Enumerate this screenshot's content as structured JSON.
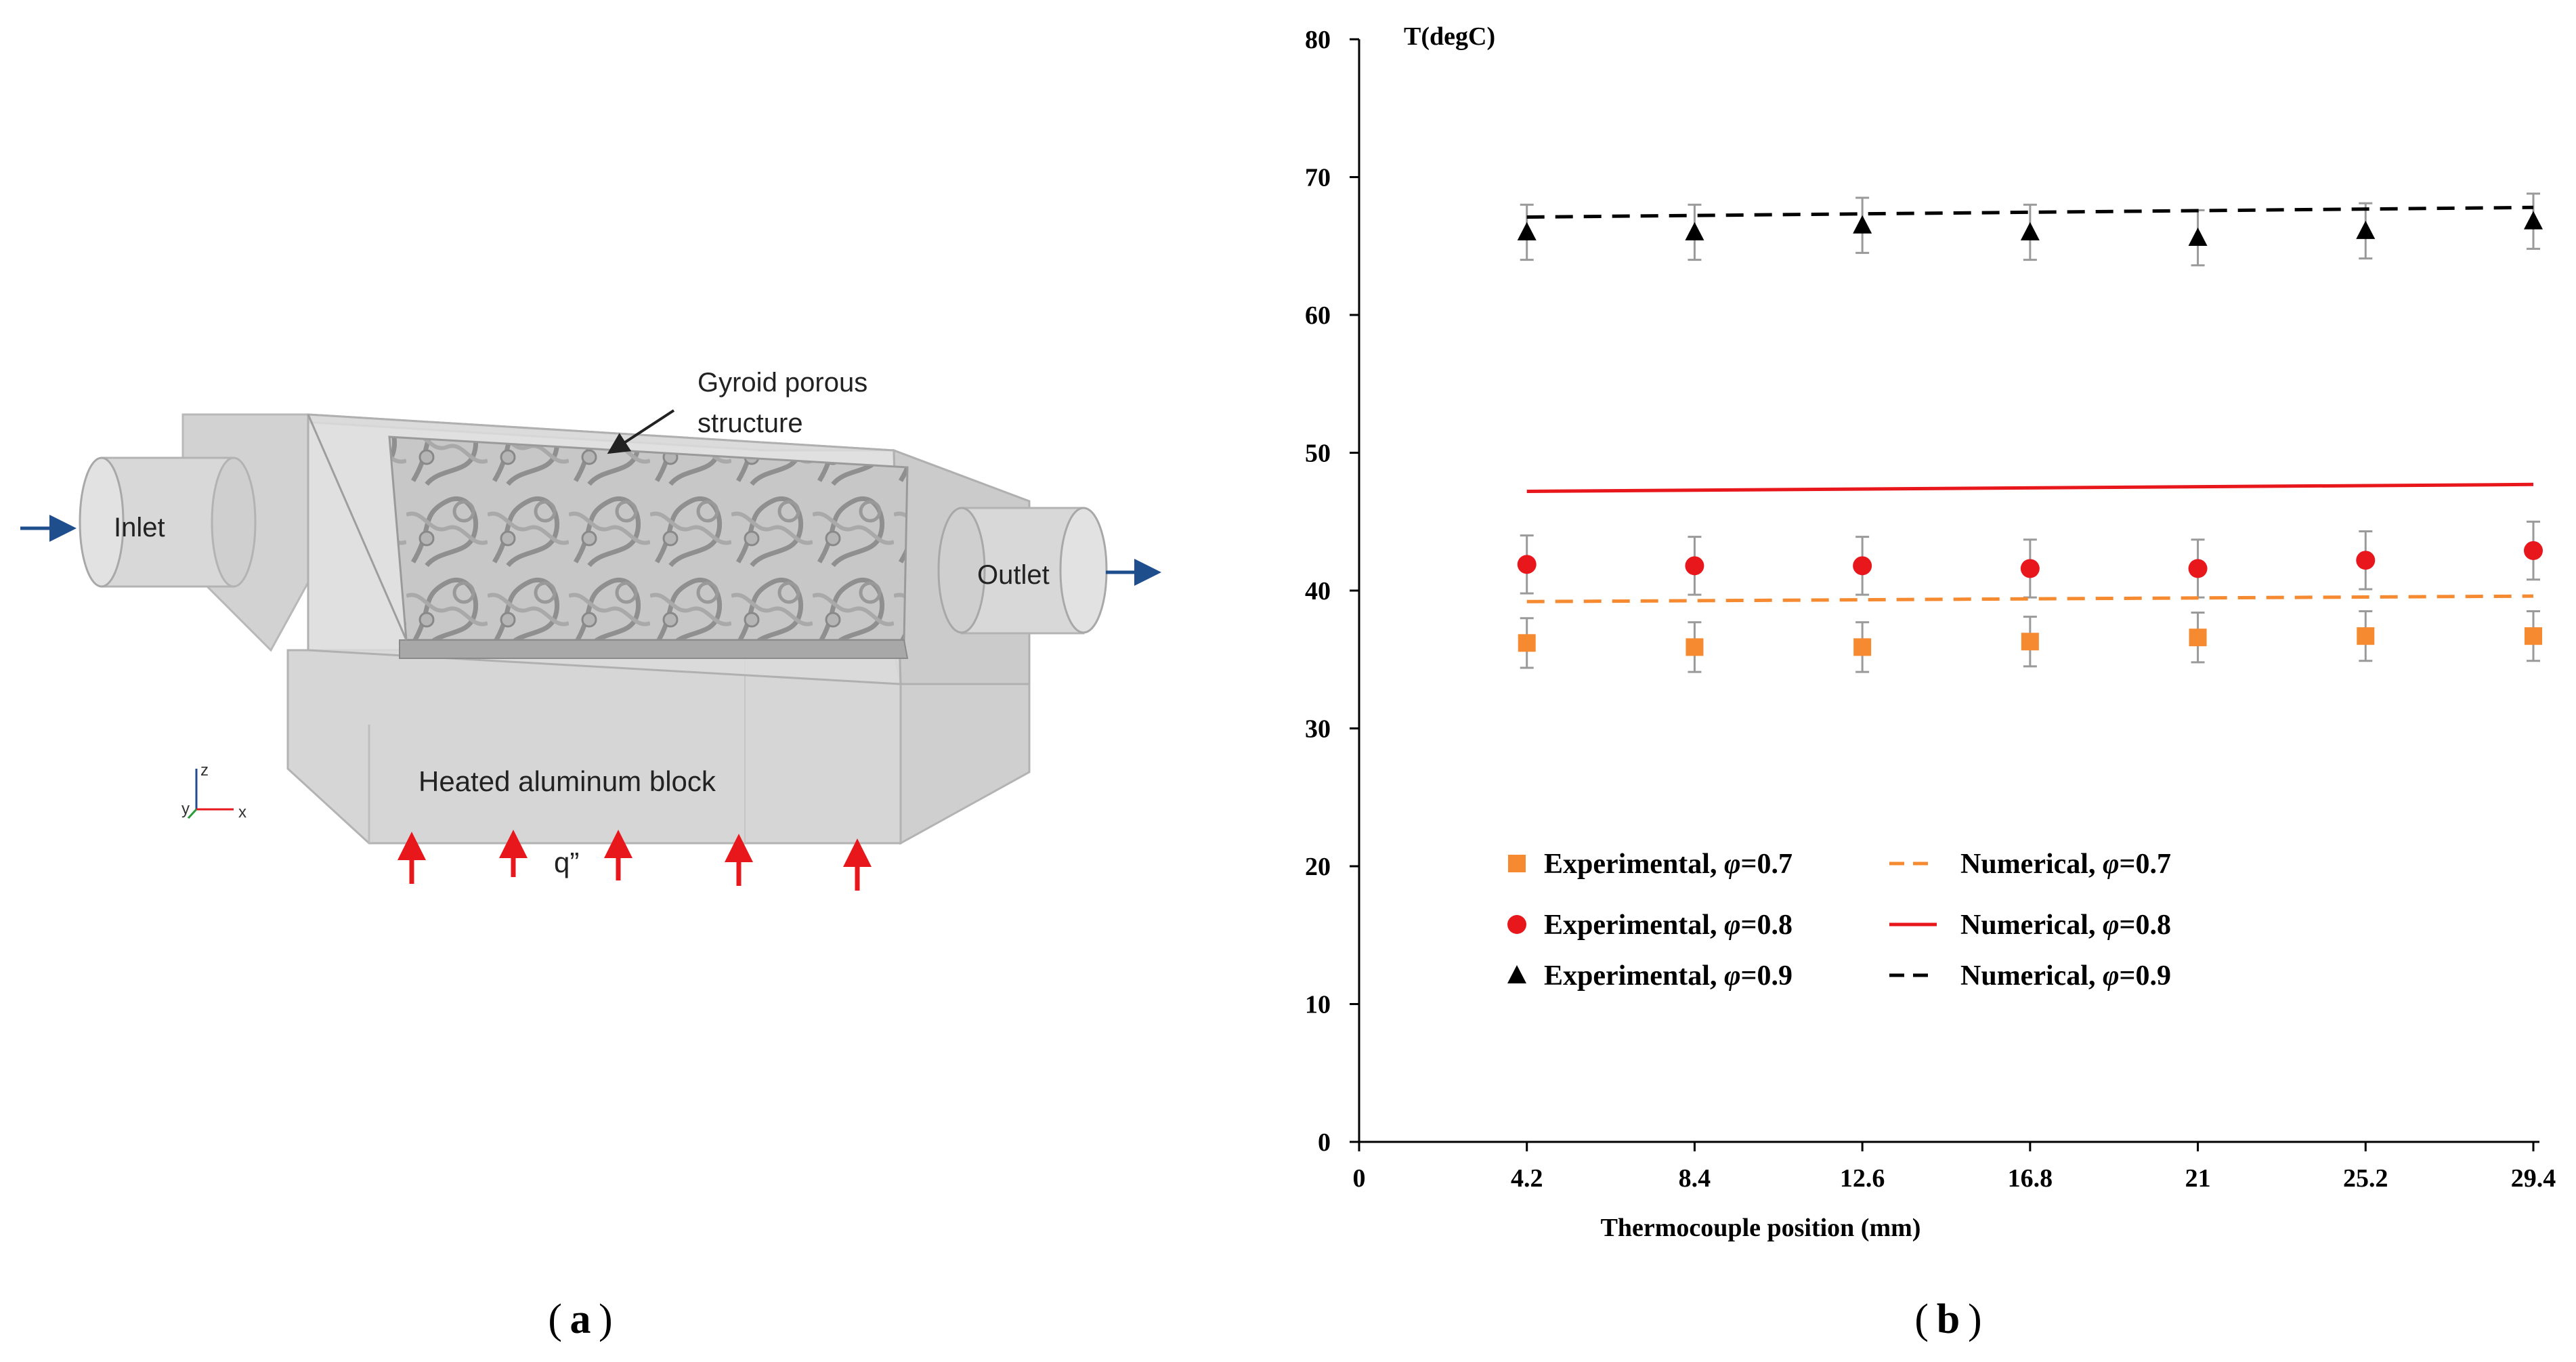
{
  "panel_a": {
    "caption_letter": "a",
    "labels": {
      "gyroid_line1": "Gyroid porous",
      "gyroid_line2": "structure",
      "inlet": "Inlet",
      "outlet": "Outlet",
      "block": "Heated aluminum block",
      "heat_flux": "q”"
    },
    "axes": {
      "z": "z",
      "y": "y",
      "x": "x"
    },
    "colors": {
      "arrow_blue": "#1f4e8c",
      "heat_red": "#e8171c",
      "housing": "#d4d4d4"
    }
  },
  "panel_b": {
    "caption_letter": "b"
  },
  "chart_data": {
    "type": "scatter",
    "ylabel": "T(degC)",
    "xlabel": "Thermocouple position (mm)",
    "x_ticks": [
      "0",
      "4.2",
      "8.4",
      "12.6",
      "16.8",
      "21",
      "25.2",
      "29.4"
    ],
    "y_ticks": [
      "0",
      "10",
      "20",
      "30",
      "40",
      "50",
      "60",
      "70",
      "80"
    ],
    "xlim": [
      0,
      29.4
    ],
    "ylim": [
      0,
      80
    ],
    "x": [
      4.2,
      8.4,
      12.6,
      16.8,
      21,
      25.2,
      29.4
    ],
    "experimental": [
      {
        "name": "Experimental, φ=0.7",
        "marker": "square",
        "color": "#f58a30",
        "values": [
          36.2,
          35.9,
          35.9,
          36.3,
          36.6,
          36.7,
          36.7
        ],
        "error": 1.8
      },
      {
        "name": "Experimental, φ=0.8",
        "marker": "circle",
        "color": "#e8171c",
        "values": [
          41.9,
          41.8,
          41.8,
          41.6,
          41.6,
          42.2,
          42.9
        ],
        "error": 2.1
      },
      {
        "name": "Experimental, φ=0.9",
        "marker": "triangle",
        "color": "#000000",
        "values": [
          66.0,
          66.0,
          66.5,
          66.0,
          65.6,
          66.1,
          66.8
        ],
        "error": 2.0
      }
    ],
    "numerical": [
      {
        "name": "Numerical, φ=0.7",
        "dash": "dashed",
        "color": "#f58a30",
        "values": [
          39.2,
          39.6
        ]
      },
      {
        "name": "Numerical, φ=0.8",
        "dash": "solid",
        "color": "#e8171c",
        "values": [
          47.2,
          47.7
        ]
      },
      {
        "name": "Numerical, φ=0.9",
        "dash": "dashed",
        "color": "#000000",
        "values": [
          67.1,
          67.8
        ]
      }
    ],
    "legend": [
      {
        "label_prefix": "Experimental, ",
        "phi": "φ",
        "label_suffix": "=0.7"
      },
      {
        "label_prefix": "Numerical, ",
        "phi": "φ",
        "label_suffix": "=0.7"
      },
      {
        "label_prefix": "Experimental, ",
        "phi": "φ",
        "label_suffix": "=0.8"
      },
      {
        "label_prefix": "Numerical, ",
        "phi": "φ",
        "label_suffix": "=0.8"
      },
      {
        "label_prefix": "Experimental, ",
        "phi": "φ",
        "label_suffix": "=0.9"
      },
      {
        "label_prefix": "Numerical, ",
        "phi": "φ",
        "label_suffix": "=0.9"
      }
    ],
    "legend_position": "bottom-left"
  }
}
